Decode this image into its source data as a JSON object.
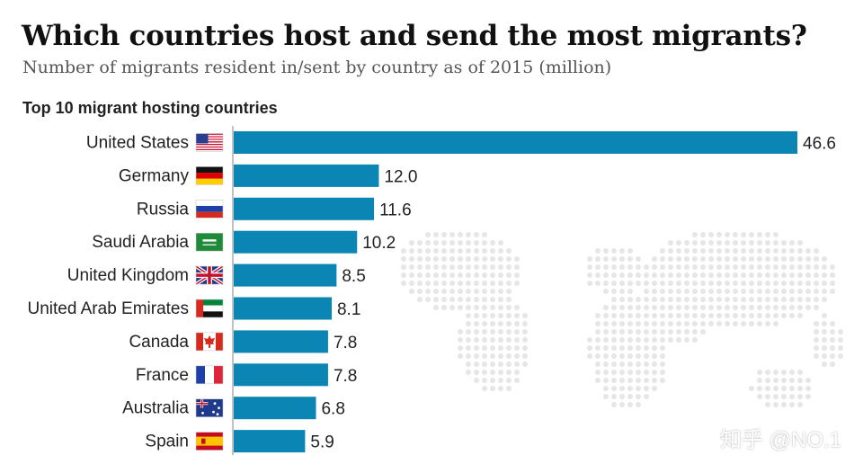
{
  "title": "Which countries host and send the most migrants?",
  "subtitle": "Number of migrants resident in/sent by country as of 2015 (million)",
  "section_title": "Top 10 migrant hosting countries",
  "watermark": "知乎 @NO.1",
  "colors": {
    "bar": "#0a85b4",
    "map_dots": "#e6e6e6",
    "axis": "#999999"
  },
  "chart_data": {
    "type": "bar",
    "orientation": "horizontal",
    "title": "Top 10 migrant hosting countries",
    "categories": [
      "United States",
      "Germany",
      "Russia",
      "Saudi Arabia",
      "United Kingdom",
      "United Arab Emirates",
      "Canada",
      "France",
      "Australia",
      "Spain"
    ],
    "flags": [
      "us-flag-icon",
      "germany-flag-icon",
      "russia-flag-icon",
      "saudi-arabia-flag-icon",
      "uk-flag-icon",
      "uae-flag-icon",
      "canada-flag-icon",
      "france-flag-icon",
      "australia-flag-icon",
      "spain-flag-icon"
    ],
    "values": [
      46.6,
      12.0,
      11.6,
      10.2,
      8.5,
      8.1,
      7.8,
      7.8,
      6.8,
      5.9
    ],
    "value_labels": [
      "46.6",
      "12.0",
      "11.6",
      "10.2",
      "8.5",
      "8.1",
      "7.8",
      "7.8",
      "6.8",
      "5.9"
    ],
    "xlim": [
      0,
      46.6
    ],
    "grid": false,
    "legend": "none"
  }
}
